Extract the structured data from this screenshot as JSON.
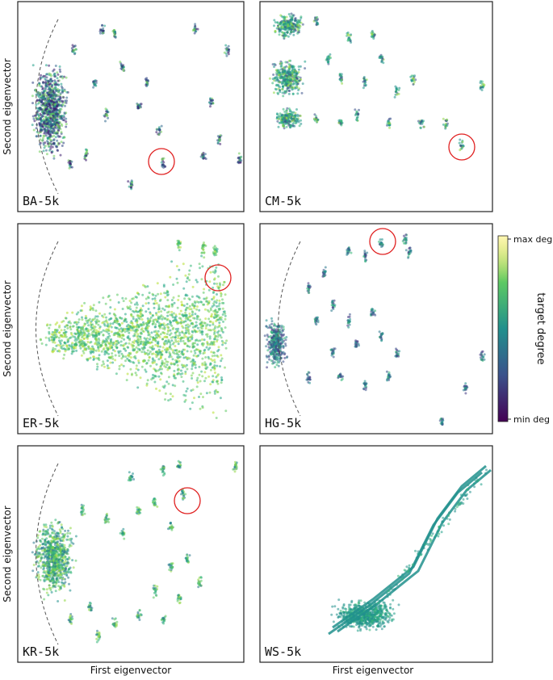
{
  "y_axis_label": "Second eigenvector",
  "x_axis_label": "First eigenvector",
  "panels": [
    {
      "label": "BA-5k"
    },
    {
      "label": "CM-5k"
    },
    {
      "label": "ER-5k"
    },
    {
      "label": "HG-5k"
    },
    {
      "label": "KR-5k"
    },
    {
      "label": "WS-5k"
    }
  ],
  "colorbar": {
    "title": "target degree",
    "max_label": "max deg",
    "min_label": "min deg"
  }
}
